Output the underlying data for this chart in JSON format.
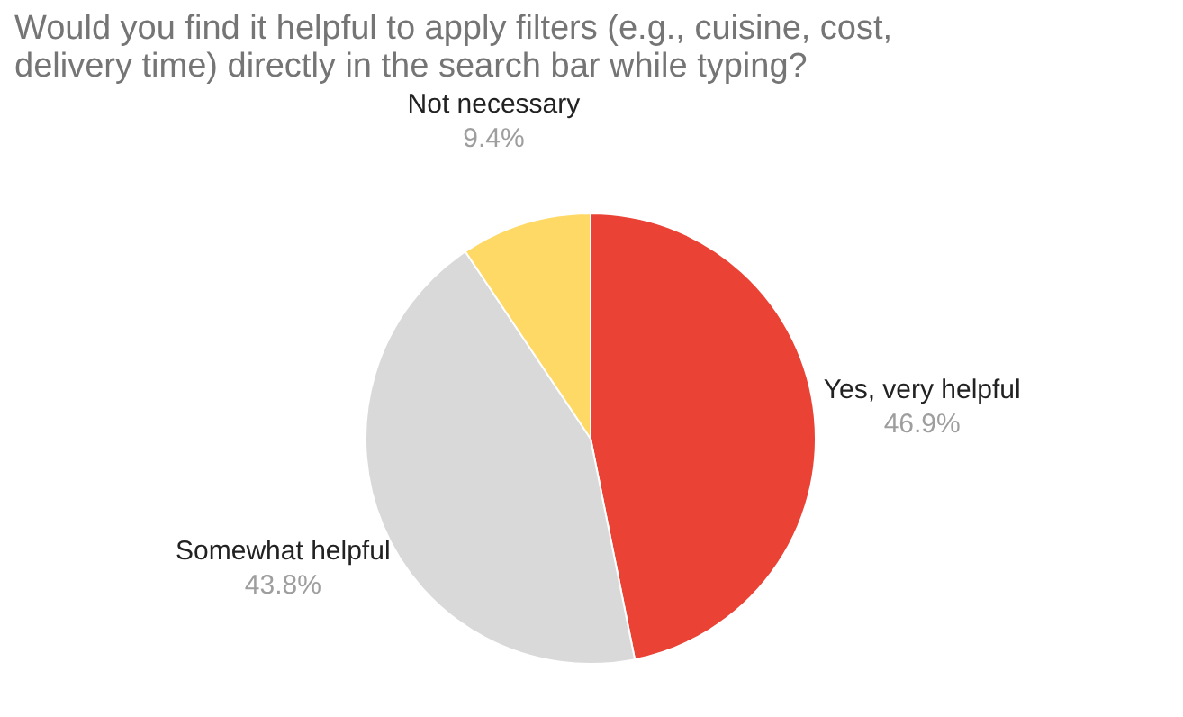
{
  "chart_data": {
    "type": "pie",
    "title": "Would you find it helpful to apply filters (e.g., cuisine, cost, delivery time) directly in the search bar while typing?",
    "categories": [
      "Yes, very helpful",
      "Somewhat helpful",
      "Not necessary"
    ],
    "values": [
      46.9,
      43.8,
      9.4
    ],
    "value_labels": [
      "46.9%",
      "43.8%",
      "9.4%"
    ],
    "colors": [
      "#ea4335",
      "#d9d9d9",
      "#ffd966"
    ]
  }
}
